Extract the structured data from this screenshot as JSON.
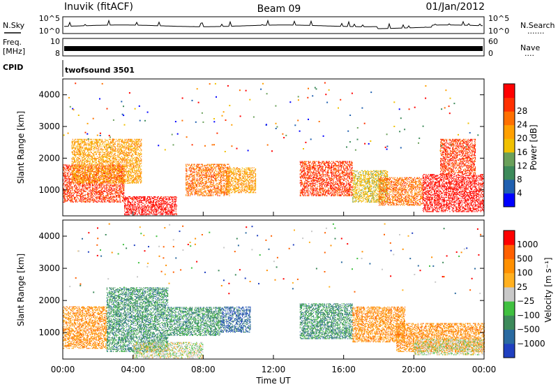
{
  "header": {
    "site": "Inuvik (fitACF)",
    "beam": "Beam 09",
    "date": "01/Jan/2012"
  },
  "panels": {
    "nsky": {
      "label": "N.Sky",
      "tick_top": "10^5",
      "tick_bottom": "10^0",
      "right_label": "N.Search",
      "right_tick_top": "10^5",
      "right_tick_bottom": "10^0",
      "right_legend": "......."
    },
    "freq": {
      "label_line1": "Freq.",
      "label_line2": "[MHz]",
      "tick_top": "10",
      "tick_bottom": "8",
      "right_label": "Nave",
      "right_tick_top": "60",
      "right_tick_bottom": "0",
      "right_legend": "...."
    },
    "cpid": {
      "label": "CPID",
      "mode": "twofsound 3501"
    }
  },
  "colors": {
    "power": [
      "#0000ff",
      "#2060b0",
      "#3d8a5a",
      "#6aa05a",
      "#f0c000",
      "#ffa000",
      "#ff7000",
      "#ff3000",
      "#ff0000"
    ],
    "velocity": [
      "#ff0000",
      "#ff6000",
      "#ff9000",
      "#ffb020",
      "#c8c8c8",
      "#40c040",
      "#3d8a5a",
      "#2a6aa0",
      "#2040c0"
    ],
    "ground_scatter": "#c8c8c8"
  },
  "chart_data": [
    {
      "type": "heatmap",
      "name": "power",
      "ylabel": "Slant Range [km]",
      "ylim": [
        180,
        4500
      ],
      "yticks": [
        "1000",
        "2000",
        "3000",
        "4000"
      ],
      "colorbar_label": "Power [dB]",
      "colorbar_ticks": [
        "4",
        "8",
        "12",
        "16",
        "20",
        "24",
        "28"
      ],
      "colorbar_range": [
        0,
        32
      ],
      "xlim_hours": [
        0,
        24
      ],
      "scatter_regions": [
        {
          "t0": 0.0,
          "t1": 3.5,
          "r0": 600,
          "r1": 1800,
          "level": 27
        },
        {
          "t0": 0.5,
          "t1": 4.5,
          "r0": 1200,
          "r1": 2600,
          "level": 20
        },
        {
          "t0": 3.5,
          "t1": 6.5,
          "r0": 200,
          "r1": 800,
          "level": 29
        },
        {
          "t0": 7.0,
          "t1": 9.5,
          "r0": 800,
          "r1": 1800,
          "level": 22
        },
        {
          "t0": 9.3,
          "t1": 11.0,
          "r0": 900,
          "r1": 1700,
          "level": 18
        },
        {
          "t0": 13.5,
          "t1": 16.5,
          "r0": 800,
          "r1": 1900,
          "level": 26
        },
        {
          "t0": 16.5,
          "t1": 18.5,
          "r0": 600,
          "r1": 1600,
          "level": 15
        },
        {
          "t0": 18.0,
          "t1": 20.5,
          "r0": 500,
          "r1": 1400,
          "level": 23
        },
        {
          "t0": 20.5,
          "t1": 24.0,
          "r0": 300,
          "r1": 1500,
          "level": 30
        },
        {
          "t0": 21.5,
          "t1": 23.5,
          "r0": 1500,
          "r1": 2600,
          "level": 28
        }
      ]
    },
    {
      "type": "heatmap",
      "name": "velocity",
      "xlabel": "Time UT",
      "ylabel": "Slant Range [km]",
      "ylim": [
        180,
        4500
      ],
      "yticks": [
        "1000",
        "2000",
        "3000",
        "4000"
      ],
      "xticks": [
        "00:00",
        "04:00",
        "08:00",
        "12:00",
        "16:00",
        "20:00",
        "00:00"
      ],
      "colorbar_label": "Velocity [m s⁻¹]",
      "colorbar_ticks": [
        "1000",
        "500",
        "100",
        "25",
        "−25",
        "−100",
        "−500",
        "−1000"
      ],
      "xlim_hours": [
        0,
        24
      ],
      "scatter_regions": [
        {
          "t0": 0.0,
          "t1": 2.5,
          "r0": 500,
          "r1": 1800,
          "level": -300
        },
        {
          "t0": 2.5,
          "t1": 6.0,
          "r0": 400,
          "r1": 2400,
          "level": 150
        },
        {
          "t0": 4.0,
          "t1": 8.0,
          "r0": 200,
          "r1": 700,
          "level": 0
        },
        {
          "t0": 6.0,
          "t1": 9.0,
          "r0": 900,
          "r1": 1800,
          "level": 250
        },
        {
          "t0": 9.0,
          "t1": 10.7,
          "r0": 1000,
          "r1": 1800,
          "level": 900
        },
        {
          "t0": 13.5,
          "t1": 16.5,
          "r0": 800,
          "r1": 1900,
          "level": 300
        },
        {
          "t0": 16.5,
          "t1": 19.5,
          "r0": 700,
          "r1": 1800,
          "level": -150
        },
        {
          "t0": 19.0,
          "t1": 24.0,
          "r0": 400,
          "r1": 1300,
          "level": -400
        },
        {
          "t0": 20.0,
          "t1": 24.0,
          "r0": 300,
          "r1": 800,
          "level": 0
        }
      ]
    }
  ]
}
